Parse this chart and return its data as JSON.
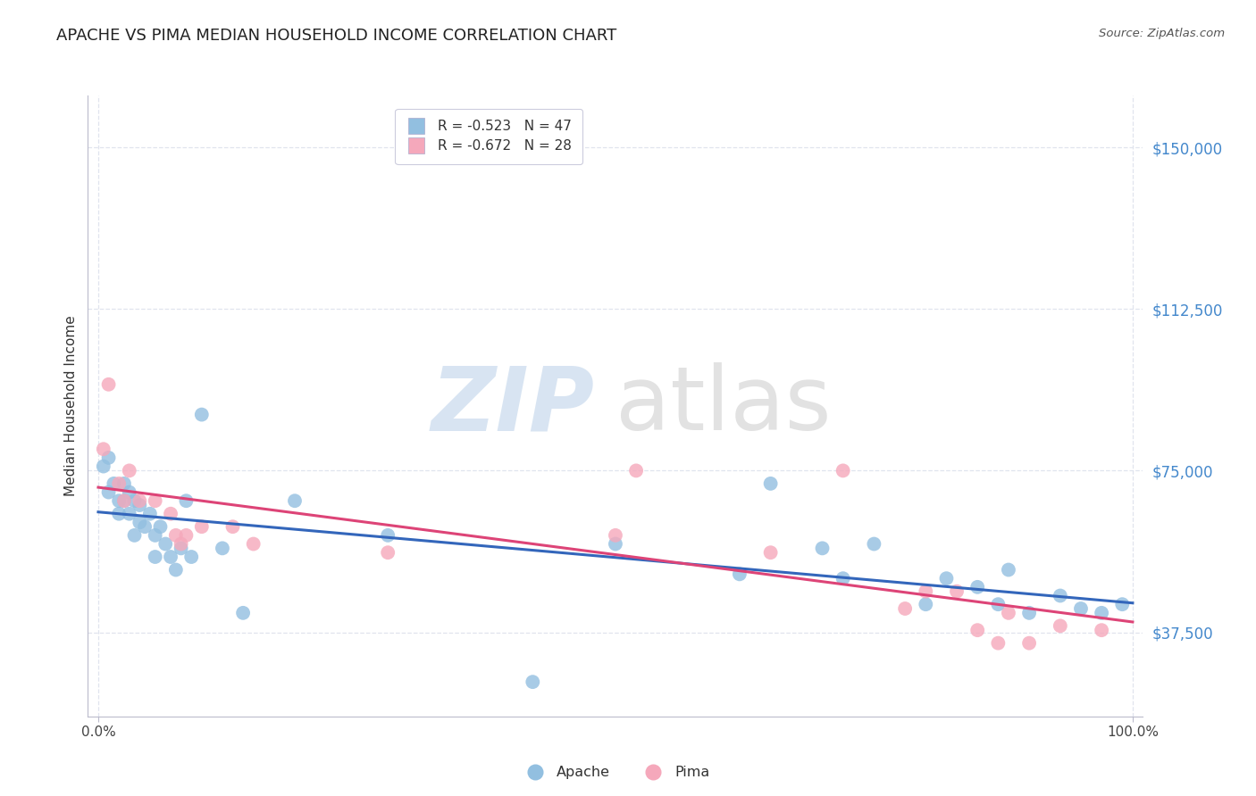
{
  "title": "APACHE VS PIMA MEDIAN HOUSEHOLD INCOME CORRELATION CHART",
  "source": "Source: ZipAtlas.com",
  "ylabel": "Median Household Income",
  "ytick_labels": [
    "$37,500",
    "$75,000",
    "$112,500",
    "$150,000"
  ],
  "ytick_values": [
    37500,
    75000,
    112500,
    150000
  ],
  "ylim": [
    18000,
    162000
  ],
  "xlim": [
    -0.01,
    1.01
  ],
  "legend_apache": "R = -0.523   N = 47",
  "legend_pima": "R = -0.672   N = 28",
  "apache_color": "#92bfe0",
  "pima_color": "#f5a8bb",
  "apache_line_color": "#3366bb",
  "pima_line_color": "#dd4477",
  "apache_x": [
    0.005,
    0.01,
    0.01,
    0.015,
    0.02,
    0.02,
    0.025,
    0.025,
    0.03,
    0.03,
    0.035,
    0.035,
    0.04,
    0.04,
    0.045,
    0.05,
    0.055,
    0.055,
    0.06,
    0.065,
    0.07,
    0.075,
    0.08,
    0.085,
    0.09,
    0.1,
    0.12,
    0.14,
    0.19,
    0.28,
    0.42,
    0.5,
    0.62,
    0.65,
    0.7,
    0.72,
    0.75,
    0.8,
    0.82,
    0.85,
    0.87,
    0.88,
    0.9,
    0.93,
    0.95,
    0.97,
    0.99
  ],
  "apache_y": [
    76000,
    78000,
    70000,
    72000,
    68000,
    65000,
    72000,
    68000,
    70000,
    65000,
    68000,
    60000,
    67000,
    63000,
    62000,
    65000,
    60000,
    55000,
    62000,
    58000,
    55000,
    52000,
    57000,
    68000,
    55000,
    88000,
    57000,
    42000,
    68000,
    60000,
    26000,
    58000,
    51000,
    72000,
    57000,
    50000,
    58000,
    44000,
    50000,
    48000,
    44000,
    52000,
    42000,
    46000,
    43000,
    42000,
    44000
  ],
  "pima_x": [
    0.005,
    0.01,
    0.02,
    0.025,
    0.03,
    0.04,
    0.055,
    0.07,
    0.075,
    0.08,
    0.085,
    0.1,
    0.13,
    0.15,
    0.28,
    0.5,
    0.52,
    0.65,
    0.72,
    0.78,
    0.8,
    0.83,
    0.85,
    0.87,
    0.88,
    0.9,
    0.93,
    0.97
  ],
  "pima_y": [
    80000,
    95000,
    72000,
    68000,
    75000,
    68000,
    68000,
    65000,
    60000,
    58000,
    60000,
    62000,
    62000,
    58000,
    56000,
    60000,
    75000,
    56000,
    75000,
    43000,
    47000,
    47000,
    38000,
    35000,
    42000,
    35000,
    39000,
    38000
  ],
  "background_color": "#ffffff",
  "grid_color": "#e0e4ee",
  "title_color": "#222222",
  "title_fontsize": 13,
  "axis_label_color": "#333333",
  "tick_color": "#4488cc",
  "legend_fontsize": 11
}
